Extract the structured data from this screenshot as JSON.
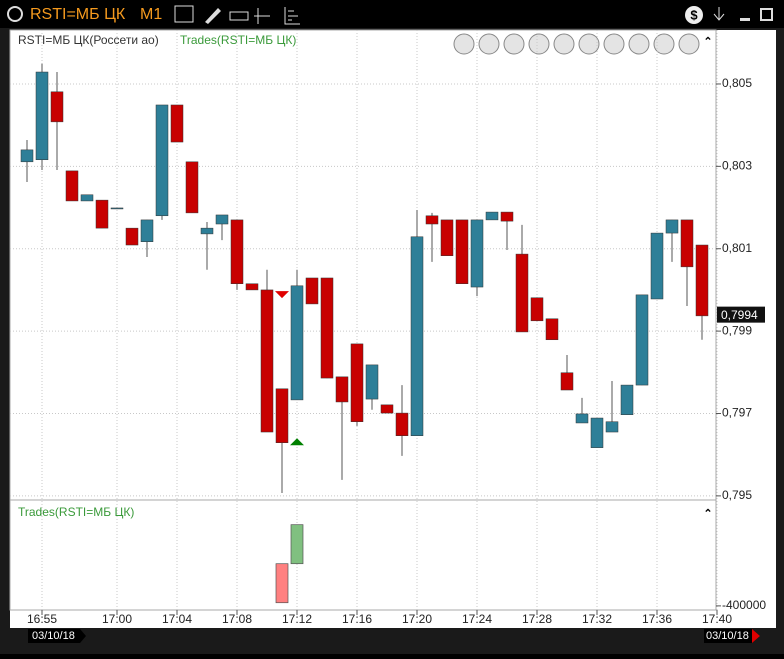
{
  "window": {
    "title": "RSTI=МБ ЦК",
    "timeframe": "M1"
  },
  "chart_data": {
    "type": "candlestick",
    "legend": [
      "RSTI=МБ ЦК(Россети ао)",
      "Trades(RSTI=МБ ЦК)"
    ],
    "up_color": "#2e7f98",
    "down_color": "#c80000",
    "grid": true,
    "open": [
      0.80311,
      0.80316,
      0.80481,
      0.80289,
      0.80216,
      0.80218,
      0.80197,
      0.8015,
      0.80117,
      0.8018,
      0.80449,
      0.80311,
      0.80136,
      0.8016,
      0.8017,
      0.80015,
      0.8,
      0.7976,
      0.79733,
      0.80029,
      0.80029,
      0.79789,
      0.79869,
      0.79735,
      0.79721,
      0.79701,
      0.79646,
      0.8018,
      0.8017,
      0.8017,
      0.80007,
      0.8017,
      0.80189,
      0.80087,
      0.79981,
      0.7993,
      0.79799,
      0.79677,
      0.79617,
      0.79655,
      0.79697,
      0.79769,
      0.79978,
      0.80138,
      0.8017,
      0.80109
    ],
    "high": [
      0.80364,
      0.80549,
      0.80529,
      0.80289,
      0.80231,
      0.80218,
      0.80199,
      0.8015,
      0.8017,
      0.80449,
      0.80449,
      0.80311,
      0.80165,
      0.80182,
      0.8017,
      0.80015,
      0.80049,
      0.7976,
      0.80049,
      0.80029,
      0.80029,
      0.79789,
      0.79869,
      0.79818,
      0.79721,
      0.79769,
      0.80194,
      0.80187,
      0.8017,
      0.8017,
      0.8017,
      0.80189,
      0.80189,
      0.80158,
      0.79981,
      0.7993,
      0.79842,
      0.79738,
      0.79689,
      0.79779,
      0.79769,
      0.79988,
      0.80138,
      0.8017,
      0.8017,
      0.80109
    ],
    "low": [
      0.80262,
      0.80291,
      0.80291,
      0.80216,
      0.80216,
      0.8015,
      0.80197,
      0.80109,
      0.8008,
      0.8017,
      0.80359,
      0.80187,
      0.80049,
      0.80121,
      0.8,
      0.8,
      0.79655,
      0.79507,
      0.79733,
      0.79966,
      0.79786,
      0.79539,
      0.7967,
      0.79709,
      0.79701,
      0.79597,
      0.79646,
      0.80068,
      0.80083,
      0.80015,
      0.79985,
      0.8017,
      0.80097,
      0.79898,
      0.79925,
      0.79879,
      0.79757,
      0.79677,
      0.79617,
      0.79655,
      0.79697,
      0.79769,
      0.79978,
      0.80068,
      0.79961,
      0.79879
    ],
    "close": [
      0.8034,
      0.80529,
      0.80408,
      0.80216,
      0.80231,
      0.8015,
      0.80199,
      0.80109,
      0.8017,
      0.80449,
      0.80359,
      0.80187,
      0.8015,
      0.80182,
      0.80015,
      0.8,
      0.79655,
      0.79629,
      0.8001,
      0.79966,
      0.79786,
      0.79728,
      0.7968,
      0.79818,
      0.79701,
      0.79646,
      0.80129,
      0.8016,
      0.80083,
      0.80015,
      0.8017,
      0.80189,
      0.80167,
      0.79898,
      0.79925,
      0.79879,
      0.79757,
      0.79699,
      0.79689,
      0.7968,
      0.79769,
      0.79988,
      0.80138,
      0.8017,
      0.80056,
      0.79937
    ],
    "ylim": [
      0.7949,
      0.80631
    ],
    "yticks": [
      {
        "value": 0.795,
        "label": "0,795"
      },
      {
        "value": 0.797,
        "label": "0,797"
      },
      {
        "value": 0.799,
        "label": "0,799"
      },
      {
        "value": 0.801,
        "label": "0,801"
      },
      {
        "value": 0.803,
        "label": "0,803"
      },
      {
        "value": 0.805,
        "label": "0,805"
      }
    ],
    "last_price": {
      "value": 0.7994,
      "label": "0,7994"
    },
    "xticks": [
      {
        "value": 1,
        "label": "16:55"
      },
      {
        "value": 6,
        "label": "17:00"
      },
      {
        "value": 10,
        "label": "17:04"
      },
      {
        "value": 14,
        "label": "17:08"
      },
      {
        "value": 18,
        "label": "17:12"
      },
      {
        "value": 22,
        "label": "17:16"
      },
      {
        "value": 26,
        "label": "17:20"
      },
      {
        "value": 30,
        "label": "17:24"
      },
      {
        "value": 34,
        "label": "17:28"
      },
      {
        "value": 38,
        "label": "17:32"
      },
      {
        "value": 42,
        "label": "17:36"
      },
      {
        "value": 46,
        "label": "17:40"
      }
    ],
    "dates": [
      "03/10/18",
      "03/10/18"
    ],
    "markers": [
      {
        "x": 17,
        "value": 0.7998,
        "color": "#e00000",
        "shape": "down"
      },
      {
        "x": 18,
        "value": 0.7964,
        "color": "#008000",
        "shape": "up"
      }
    ],
    "trades": {
      "title": "Trades(RSTI=МБ ЦК)",
      "ylim": [
        -439000,
        585000
      ],
      "yticks": [
        -400000
      ],
      "bars": [
        {
          "x": 17,
          "value": -370000,
          "color": "#ff8080"
        },
        {
          "x": 18,
          "value": 370000,
          "color": "#80c080"
        }
      ]
    }
  }
}
